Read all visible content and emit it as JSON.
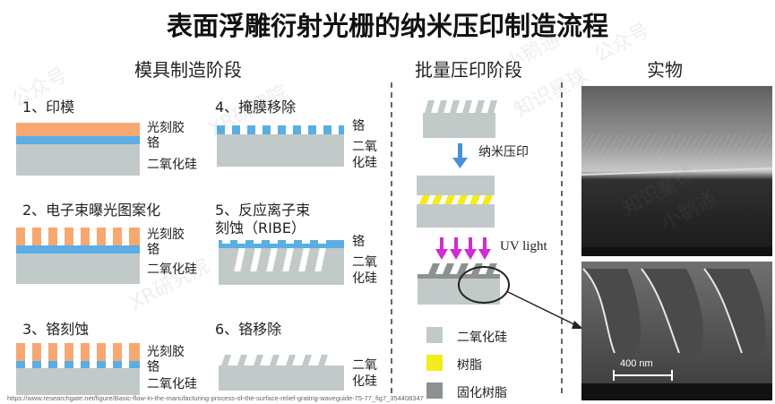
{
  "title": "表面浮雕衍射光栅的纳米压印制造流程",
  "sections": {
    "mold": "模具制造阶段",
    "batch": "批量压印阶段",
    "real": "实物"
  },
  "steps": [
    {
      "label": "1、印模"
    },
    {
      "label": "2、电子束曝光图案化"
    },
    {
      "label": "3、铬刻蚀"
    },
    {
      "label": "4、掩膜移除"
    },
    {
      "label": "5、反应离子束"
    },
    {
      "label": "刻蚀（RIBE）"
    },
    {
      "label": "6、铬移除"
    }
  ],
  "layer_labels": {
    "photoresist": "光刻胶",
    "chromium": "铬",
    "silica_1": "二氧",
    "silica_2": "化硅",
    "silica_full": "二氧化硅"
  },
  "batch_labels": {
    "nanoimprint": "纳米压印",
    "uv": "UV light"
  },
  "legend": [
    {
      "label": "二氧化硅",
      "color": "#c2c9c9"
    },
    {
      "label": "树脂",
      "color": "#f3ec1b"
    },
    {
      "label": "固化树脂",
      "color": "#8d9190"
    }
  ],
  "sem": {
    "scale": "400 nm"
  },
  "source": "https://www.researchgate.net/figure/Basic-flow-in-the-manufacturing-process-of-the-surface-relief-grating-waveguide-75-77_fig7_354408347",
  "watermarks": [
    "XR研究院",
    "知识星球",
    "小鹅通",
    "公众号",
    "XR研究院",
    "知识星球",
    "小鹅通",
    "公众号"
  ],
  "colors": {
    "photoresist": "#f6a873",
    "chromium": "#5aaee3",
    "silica": "#c2c9c9",
    "resin": "#f3ec1b",
    "cured": "#8d9190",
    "arrow_blue": "#4a90d9",
    "arrow_magenta": "#d12bd1"
  }
}
